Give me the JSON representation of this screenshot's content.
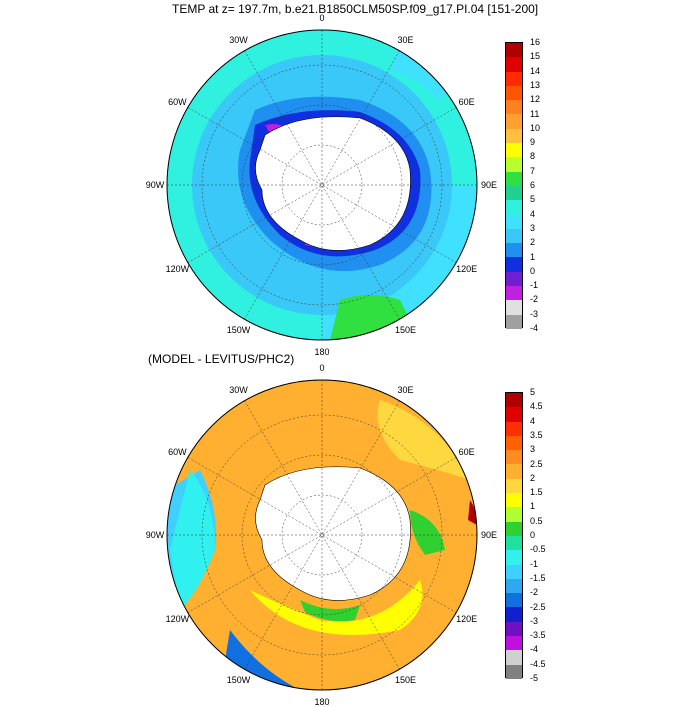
{
  "panels": [
    {
      "title": "TEMP at z= 197.7m, b.e21.B1850CLM50SP.f09_g17.PI.04 [151-200]",
      "lon_labels": [
        {
          "lon": 0,
          "text": "0"
        },
        {
          "lon": 30,
          "text": "30E"
        },
        {
          "lon": 60,
          "text": "60E"
        },
        {
          "lon": 90,
          "text": "90E"
        },
        {
          "lon": 120,
          "text": "120E"
        },
        {
          "lon": 150,
          "text": "150E"
        },
        {
          "lon": 180,
          "text": "180"
        },
        {
          "lon": -150,
          "text": "150W"
        },
        {
          "lon": -120,
          "text": "120W"
        },
        {
          "lon": -90,
          "text": "90W"
        },
        {
          "lon": -60,
          "text": "60W"
        },
        {
          "lon": -30,
          "text": "30W"
        }
      ],
      "colorbar": {
        "labels": [
          "16",
          "15",
          "14",
          "13",
          "12",
          "11",
          "10",
          "9",
          "8",
          "7",
          "6",
          "5",
          "4",
          "3",
          "2",
          "1",
          "0",
          "-1",
          "-2",
          "-3",
          "-4"
        ],
        "colors": [
          "#b00000",
          "#e00000",
          "#ff2a00",
          "#ff5500",
          "#ff8020",
          "#ffa030",
          "#ffc040",
          "#ffff00",
          "#b8ff30",
          "#30e040",
          "#20d090",
          "#30f0e0",
          "#40e0ff",
          "#3ac8f8",
          "#2090f0",
          "#1030e0",
          "#7020d0",
          "#c020e0",
          "#e0e0e0",
          "#a0a0a0"
        ]
      }
    },
    {
      "title": "(MODEL - LEVITUS/PHC2)",
      "lon_labels": [
        {
          "lon": 0,
          "text": "0"
        },
        {
          "lon": 30,
          "text": "30E"
        },
        {
          "lon": 60,
          "text": "60E"
        },
        {
          "lon": 90,
          "text": "90E"
        },
        {
          "lon": 120,
          "text": "120E"
        },
        {
          "lon": 150,
          "text": "150E"
        },
        {
          "lon": 180,
          "text": "180"
        },
        {
          "lon": -150,
          "text": "150W"
        },
        {
          "lon": -120,
          "text": "120W"
        },
        {
          "lon": -90,
          "text": "90W"
        },
        {
          "lon": -60,
          "text": "60W"
        },
        {
          "lon": -30,
          "text": "30W"
        }
      ],
      "colorbar": {
        "labels": [
          "5",
          "4.5",
          "4",
          "3.5",
          "3",
          "2.5",
          "2",
          "1.5",
          "1",
          "0.5",
          "0",
          "-0.5",
          "-1",
          "-1.5",
          "-2",
          "-2.5",
          "-3",
          "-3.5",
          "-4",
          "-4.5",
          "-5"
        ],
        "colors": [
          "#b00000",
          "#e00000",
          "#ff3000",
          "#ff6000",
          "#ff8c20",
          "#ffb030",
          "#ffd840",
          "#ffff00",
          "#b0ff30",
          "#30d030",
          "#20e0a0",
          "#30f0f0",
          "#40d0ff",
          "#30a8f0",
          "#1070e0",
          "#1020d0",
          "#7010c0",
          "#c010e0",
          "#d0d0d0",
          "#808080"
        ]
      }
    }
  ]
}
